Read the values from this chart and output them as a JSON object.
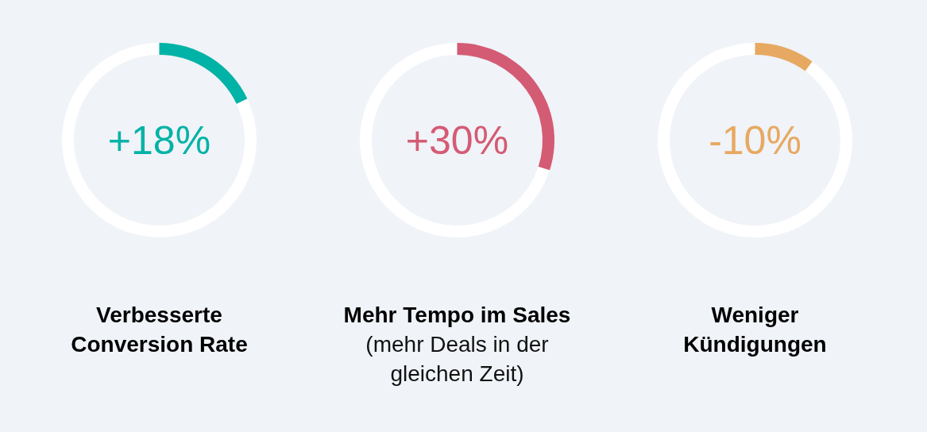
{
  "chart_data": [
    {
      "type": "donut",
      "categories": [
        null,
        null
      ],
      "values": [
        18,
        82
      ],
      "colors": [
        "#00b3a6",
        "#ffffff"
      ],
      "annotations": [
        "+18%"
      ],
      "title": "Verbesserte\nConversion Rate"
    },
    {
      "type": "donut",
      "categories": [
        null,
        null
      ],
      "values": [
        30,
        70
      ],
      "colors": [
        "#d45b74",
        "#ffffff"
      ],
      "annotations": [
        "+30%"
      ],
      "title": "Mehr Tempo im Sales",
      "subtitle": "(mehr Deals in der\ngleichen Zeit)"
    },
    {
      "type": "donut",
      "categories": [
        null,
        null
      ],
      "values": [
        10,
        90
      ],
      "colors": [
        "#e7a961",
        "#ffffff"
      ],
      "annotations": [
        "-10%"
      ],
      "title": "Weniger\nKündigungen"
    }
  ]
}
